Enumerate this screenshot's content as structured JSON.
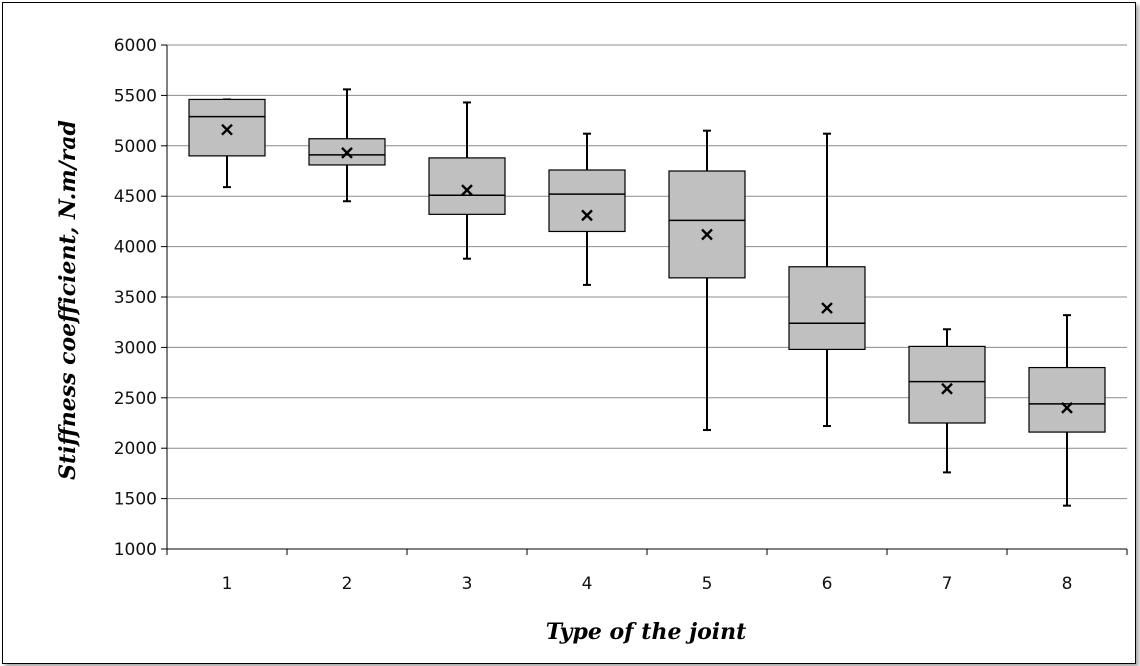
{
  "chart_data": {
    "type": "box",
    "title": "",
    "xlabel": "Type of the joint",
    "ylabel": "Stiffness coefficient, N.m/rad",
    "ylim": [
      1000,
      6000
    ],
    "yticks": [
      1000,
      1500,
      2000,
      2500,
      3000,
      3500,
      4000,
      4500,
      5000,
      5500,
      6000
    ],
    "grid": "horizontal",
    "colors": {
      "box_fill": "#c0c0c0",
      "box_stroke": "#000000",
      "grid": "#8c8c8c"
    },
    "categories": [
      "1",
      "2",
      "3",
      "4",
      "5",
      "6",
      "7",
      "8"
    ],
    "boxes": [
      {
        "min": 4590,
        "q1": 4900,
        "median": 5290,
        "q3": 5460,
        "max": 5460,
        "mean": 5160
      },
      {
        "min": 4450,
        "q1": 4810,
        "median": 4910,
        "q3": 5070,
        "max": 5560,
        "mean": 4930
      },
      {
        "min": 3880,
        "q1": 4320,
        "median": 4510,
        "q3": 4880,
        "max": 5430,
        "mean": 4560
      },
      {
        "min": 3620,
        "q1": 4150,
        "median": 4520,
        "q3": 4760,
        "max": 5120,
        "mean": 4310
      },
      {
        "min": 2180,
        "q1": 3690,
        "median": 4260,
        "q3": 4750,
        "max": 5150,
        "mean": 4120
      },
      {
        "min": 2220,
        "q1": 2980,
        "median": 3240,
        "q3": 3800,
        "max": 5120,
        "mean": 3390
      },
      {
        "min": 1760,
        "q1": 2250,
        "median": 2660,
        "q3": 3010,
        "max": 3180,
        "mean": 2590
      },
      {
        "min": 1430,
        "q1": 2160,
        "median": 2440,
        "q3": 2800,
        "max": 3320,
        "mean": 2400
      }
    ]
  }
}
